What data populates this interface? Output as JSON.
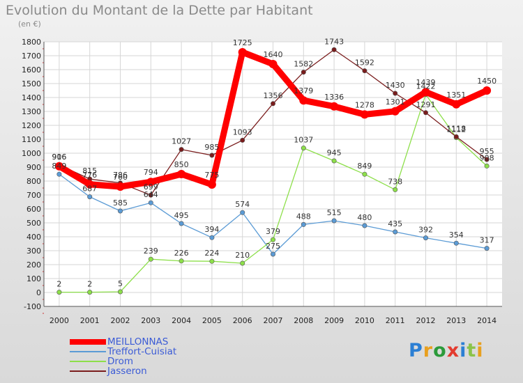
{
  "title": "Evolution du Montant de la Dette par Habitant",
  "unit": "(en €)",
  "brand": "Proxiti",
  "colors": {
    "meillonnas": "#ff0000",
    "treffort": "#5b9bd5",
    "drom": "#8ddf4a",
    "jasseron": "#7a1c1c"
  },
  "chart_data": {
    "type": "line",
    "x": [
      2000,
      2001,
      2002,
      2003,
      2004,
      2005,
      2006,
      2007,
      2008,
      2009,
      2010,
      2011,
      2012,
      2013,
      2014
    ],
    "ylim": [
      -100,
      1800
    ],
    "yticks": [
      -100,
      0,
      100,
      200,
      300,
      400,
      500,
      600,
      700,
      800,
      900,
      1000,
      1100,
      1200,
      1300,
      1400,
      1500,
      1600,
      1700,
      1800
    ],
    "grid": true,
    "legend_position": "bottom-left",
    "series": [
      {
        "name": "MEILLONNAS",
        "key": "meillonnas",
        "values": [
          906,
          776,
          760,
          794,
          850,
          775,
          1725,
          1640,
          1379,
          1336,
          1278,
          1301,
          1439,
          1351,
          1450
        ]
      },
      {
        "name": "Treffort-Cuisiat",
        "key": "treffort",
        "values": [
          849,
          687,
          585,
          644,
          495,
          394,
          574,
          275,
          488,
          515,
          480,
          435,
          392,
          354,
          317
        ]
      },
      {
        "name": "Drom",
        "key": "drom",
        "values": [
          2,
          2,
          5,
          239,
          226,
          224,
          210,
          379,
          1037,
          945,
          849,
          738,
          1422,
          1112,
          908
        ]
      },
      {
        "name": "Jasseron",
        "key": "jasseron",
        "values": [
          916,
          815,
          786,
          699,
          1027,
          985,
          1093,
          1356,
          1582,
          1743,
          1592,
          1430,
          1291,
          1118,
          955
        ]
      }
    ]
  }
}
